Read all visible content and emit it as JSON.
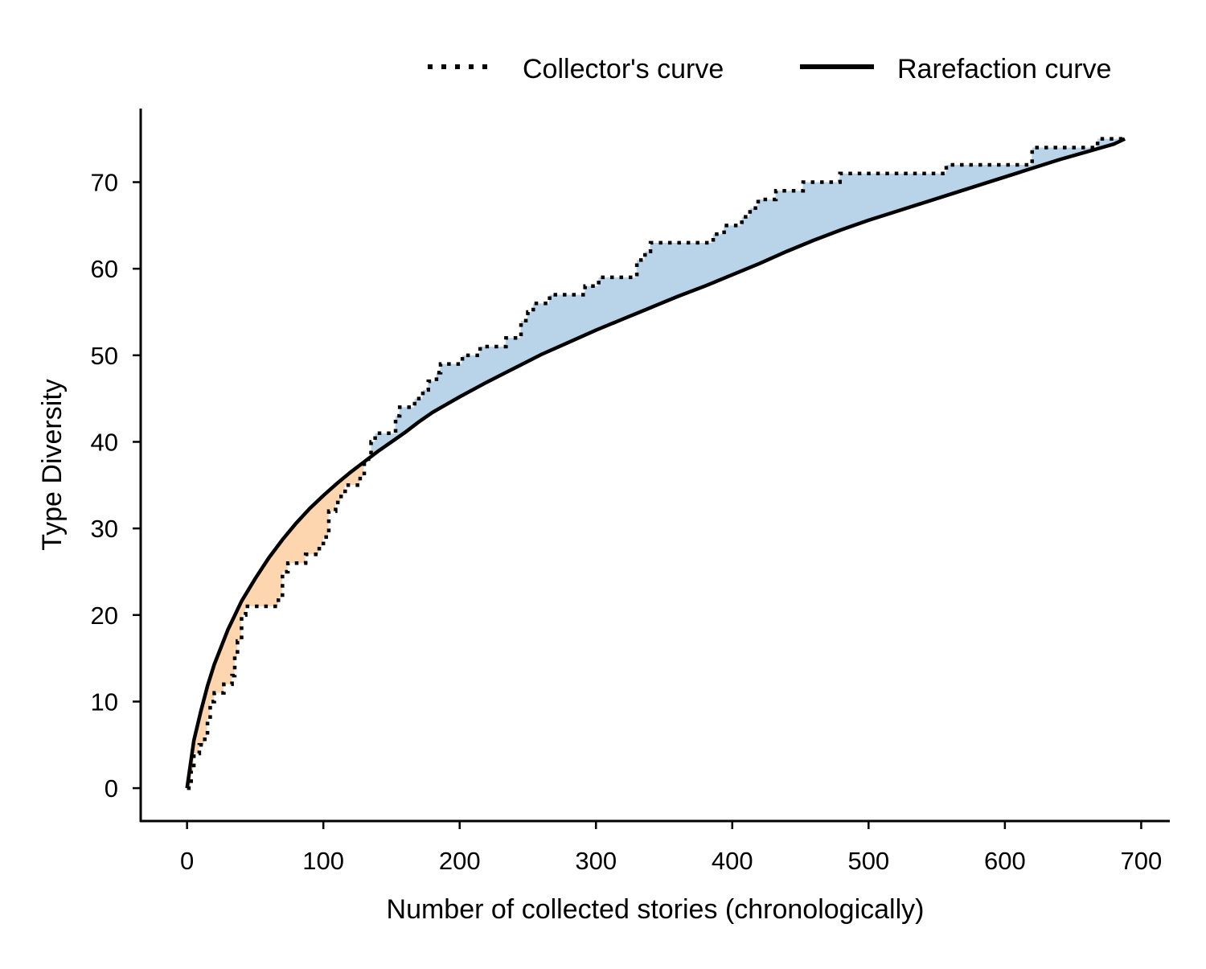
{
  "chart_data": {
    "type": "line",
    "title": "",
    "xlabel": "Number of collected stories (chronologically)",
    "ylabel": "Type Diversity",
    "xlim": [
      -34,
      721
    ],
    "ylim": [
      -3.8,
      78.5
    ],
    "xticks": [
      0,
      100,
      200,
      300,
      400,
      500,
      600,
      700
    ],
    "yticks": [
      0,
      10,
      20,
      30,
      40,
      50,
      60,
      70
    ],
    "grid": false,
    "legend_position": "top-right",
    "colors": {
      "axis": "#000000",
      "line": "#000000",
      "fill_above": "#b9d4e8",
      "fill_below": "#fdd5ae"
    },
    "series": [
      {
        "name": "Collector's curve",
        "style": "dotted",
        "points": [
          [
            0,
            0
          ],
          [
            3,
            2
          ],
          [
            5,
            4
          ],
          [
            9,
            5
          ],
          [
            13,
            6
          ],
          [
            15,
            8
          ],
          [
            17,
            10
          ],
          [
            20,
            11
          ],
          [
            27,
            12
          ],
          [
            33,
            13
          ],
          [
            35,
            15
          ],
          [
            37,
            17
          ],
          [
            40,
            20
          ],
          [
            43,
            21
          ],
          [
            64,
            21
          ],
          [
            67,
            22
          ],
          [
            70,
            25
          ],
          [
            74,
            26
          ],
          [
            87,
            27
          ],
          [
            97,
            28
          ],
          [
            100,
            29
          ],
          [
            104,
            32
          ],
          [
            109,
            33
          ],
          [
            113,
            34
          ],
          [
            116,
            35
          ],
          [
            127,
            36
          ],
          [
            130,
            38
          ],
          [
            135,
            40
          ],
          [
            138,
            41
          ],
          [
            150,
            41
          ],
          [
            153,
            43
          ],
          [
            156,
            44
          ],
          [
            164,
            44
          ],
          [
            167,
            45
          ],
          [
            173,
            46
          ],
          [
            177,
            47
          ],
          [
            183,
            48
          ],
          [
            186,
            49
          ],
          [
            198,
            49
          ],
          [
            202,
            50
          ],
          [
            212,
            50
          ],
          [
            215,
            51
          ],
          [
            230,
            51
          ],
          [
            234,
            52
          ],
          [
            242,
            52
          ],
          [
            245,
            54
          ],
          [
            250,
            55
          ],
          [
            254,
            56
          ],
          [
            263,
            56
          ],
          [
            266,
            57
          ],
          [
            287,
            57
          ],
          [
            292,
            58
          ],
          [
            302,
            59
          ],
          [
            324,
            59
          ],
          [
            330,
            61
          ],
          [
            336,
            62
          ],
          [
            340,
            63
          ],
          [
            374,
            63
          ],
          [
            386,
            64
          ],
          [
            394,
            65
          ],
          [
            404,
            65
          ],
          [
            407,
            66
          ],
          [
            413,
            67
          ],
          [
            419,
            68
          ],
          [
            428,
            68
          ],
          [
            432,
            69
          ],
          [
            448,
            69
          ],
          [
            452,
            70
          ],
          [
            475,
            70
          ],
          [
            479,
            71
          ],
          [
            553,
            71
          ],
          [
            557,
            72
          ],
          [
            583,
            72
          ],
          [
            588,
            72
          ],
          [
            616,
            72
          ],
          [
            620,
            74
          ],
          [
            665,
            74
          ],
          [
            668,
            75
          ],
          [
            686,
            75
          ],
          [
            688,
            75
          ]
        ]
      },
      {
        "name": "Rarefaction curve",
        "style": "solid",
        "points": [
          [
            0,
            0
          ],
          [
            5,
            5.5
          ],
          [
            10,
            8.8
          ],
          [
            15,
            11.8
          ],
          [
            20,
            14.3
          ],
          [
            30,
            18.3
          ],
          [
            40,
            21.6
          ],
          [
            50,
            24.2
          ],
          [
            60,
            26.6
          ],
          [
            70,
            28.7
          ],
          [
            80,
            30.6
          ],
          [
            90,
            32.3
          ],
          [
            100,
            33.8
          ],
          [
            110,
            35.2
          ],
          [
            120,
            36.5
          ],
          [
            130,
            37.7
          ],
          [
            140,
            38.9
          ],
          [
            150,
            40
          ],
          [
            160,
            41.1
          ],
          [
            170,
            42.3
          ],
          [
            180,
            43.4
          ],
          [
            190,
            44.3
          ],
          [
            200,
            45.2
          ],
          [
            220,
            46.9
          ],
          [
            240,
            48.5
          ],
          [
            260,
            50.1
          ],
          [
            280,
            51.5
          ],
          [
            300,
            52.9
          ],
          [
            320,
            54.2
          ],
          [
            340,
            55.5
          ],
          [
            360,
            56.8
          ],
          [
            380,
            58
          ],
          [
            400,
            59.3
          ],
          [
            420,
            60.6
          ],
          [
            440,
            62
          ],
          [
            460,
            63.3
          ],
          [
            480,
            64.5
          ],
          [
            500,
            65.6
          ],
          [
            520,
            66.6
          ],
          [
            540,
            67.6
          ],
          [
            560,
            68.6
          ],
          [
            580,
            69.6
          ],
          [
            600,
            70.6
          ],
          [
            620,
            71.6
          ],
          [
            640,
            72.6
          ],
          [
            660,
            73.5
          ],
          [
            680,
            74.4
          ],
          [
            688,
            75
          ]
        ]
      }
    ]
  }
}
